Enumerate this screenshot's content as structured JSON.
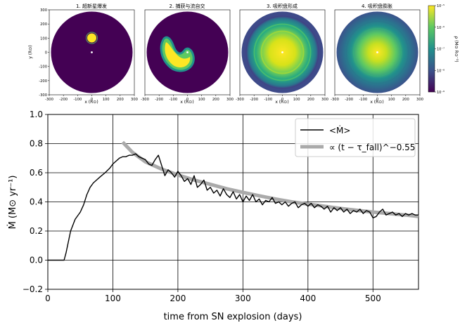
{
  "panels": [
    {
      "title": "1. 超新星爆发",
      "xlabel": "x (R⊙)",
      "ylabel": "y (R⊙)",
      "stage": "blob"
    },
    {
      "title": "2. 捕获与流自交",
      "xlabel": "x (R⊙)",
      "ylabel": "",
      "stage": "stream"
    },
    {
      "title": "3. 吸积盘形成",
      "xlabel": "x (R⊙)",
      "ylabel": "",
      "stage": "forming"
    },
    {
      "title": "4. 吸积盘膨胀",
      "xlabel": "x (R⊙)",
      "ylabel": "",
      "stage": "disk"
    }
  ],
  "panel_axes": {
    "xlim": [
      -300,
      300
    ],
    "ylim": [
      -300,
      300
    ],
    "xticks": [
      "-300",
      "-200",
      "-100",
      "0",
      "100",
      "200",
      "300"
    ],
    "yticks": [
      "300",
      "200",
      "100",
      "0",
      "-100",
      "-200",
      "-300"
    ]
  },
  "colorbar": {
    "label": "ρ (M⊙ R⊙⁻³)",
    "ticks": [
      "10⁻⁵",
      "10⁻⁶",
      "10⁻⁷",
      "10⁻⁸",
      "10⁻⁹"
    ],
    "colormap": [
      "#440154",
      "#3b528b",
      "#21918c",
      "#5ec962",
      "#fde725"
    ]
  },
  "chart_data": {
    "type": "line",
    "xlabel": "time from SN explosion (days)",
    "ylabel": "Ṁ (M⊙ yr⁻¹)",
    "xlim": [
      0,
      570
    ],
    "ylim": [
      -0.2,
      1.0
    ],
    "xticks": [
      "0",
      "100",
      "200",
      "300",
      "400",
      "500"
    ],
    "yticks": [
      "−0.2",
      "0.0",
      "0.2",
      "0.4",
      "0.6",
      "0.8",
      "1.0"
    ],
    "grid": true,
    "legend_position": "top-right",
    "series": [
      {
        "name": "<Ṁ>",
        "color": "#000000",
        "x": [
          0,
          15,
          25,
          28,
          35,
          42,
          50,
          55,
          60,
          65,
          70,
          75,
          80,
          88,
          95,
          100,
          105,
          110,
          115,
          120,
          125,
          130,
          135,
          140,
          145,
          150,
          155,
          160,
          165,
          170,
          175,
          180,
          185,
          190,
          195,
          200,
          205,
          210,
          215,
          220,
          225,
          230,
          235,
          240,
          245,
          250,
          255,
          260,
          265,
          270,
          275,
          280,
          285,
          290,
          295,
          300,
          305,
          310,
          315,
          320,
          325,
          330,
          335,
          340,
          345,
          350,
          355,
          360,
          365,
          370,
          375,
          380,
          385,
          390,
          395,
          400,
          405,
          410,
          415,
          420,
          425,
          430,
          435,
          440,
          445,
          450,
          455,
          460,
          465,
          470,
          475,
          480,
          485,
          490,
          495,
          500,
          505,
          510,
          515,
          520,
          525,
          530,
          535,
          540,
          545,
          550,
          555,
          560,
          565,
          570
        ],
        "y": [
          0.0,
          0.0,
          0.0,
          0.05,
          0.2,
          0.28,
          0.33,
          0.38,
          0.45,
          0.5,
          0.53,
          0.55,
          0.57,
          0.6,
          0.63,
          0.66,
          0.68,
          0.7,
          0.71,
          0.71,
          0.72,
          0.72,
          0.73,
          0.71,
          0.7,
          0.69,
          0.66,
          0.65,
          0.69,
          0.72,
          0.65,
          0.58,
          0.62,
          0.6,
          0.57,
          0.61,
          0.58,
          0.54,
          0.56,
          0.52,
          0.58,
          0.5,
          0.52,
          0.55,
          0.48,
          0.5,
          0.46,
          0.48,
          0.44,
          0.49,
          0.45,
          0.43,
          0.47,
          0.42,
          0.45,
          0.4,
          0.44,
          0.41,
          0.45,
          0.4,
          0.42,
          0.38,
          0.41,
          0.4,
          0.43,
          0.39,
          0.4,
          0.38,
          0.4,
          0.37,
          0.39,
          0.4,
          0.36,
          0.38,
          0.39,
          0.37,
          0.39,
          0.36,
          0.38,
          0.37,
          0.35,
          0.37,
          0.33,
          0.36,
          0.34,
          0.36,
          0.33,
          0.35,
          0.32,
          0.34,
          0.33,
          0.35,
          0.32,
          0.34,
          0.33,
          0.29,
          0.3,
          0.33,
          0.35,
          0.31,
          0.32,
          0.33,
          0.31,
          0.32,
          0.3,
          0.32,
          0.31,
          0.32,
          0.31,
          0.31
        ]
      },
      {
        "name": "∝ (t − τ_fall)^−0.55",
        "color": "#aaaaaa",
        "x": [
          115,
          130,
          150,
          175,
          200,
          225,
          250,
          275,
          300,
          325,
          350,
          375,
          400,
          425,
          450,
          475,
          500,
          525,
          550,
          570
        ],
        "y": [
          0.81,
          0.74,
          0.675,
          0.625,
          0.585,
          0.55,
          0.52,
          0.49,
          0.465,
          0.442,
          0.42,
          0.4,
          0.385,
          0.37,
          0.355,
          0.342,
          0.33,
          0.32,
          0.31,
          0.3
        ]
      }
    ]
  }
}
